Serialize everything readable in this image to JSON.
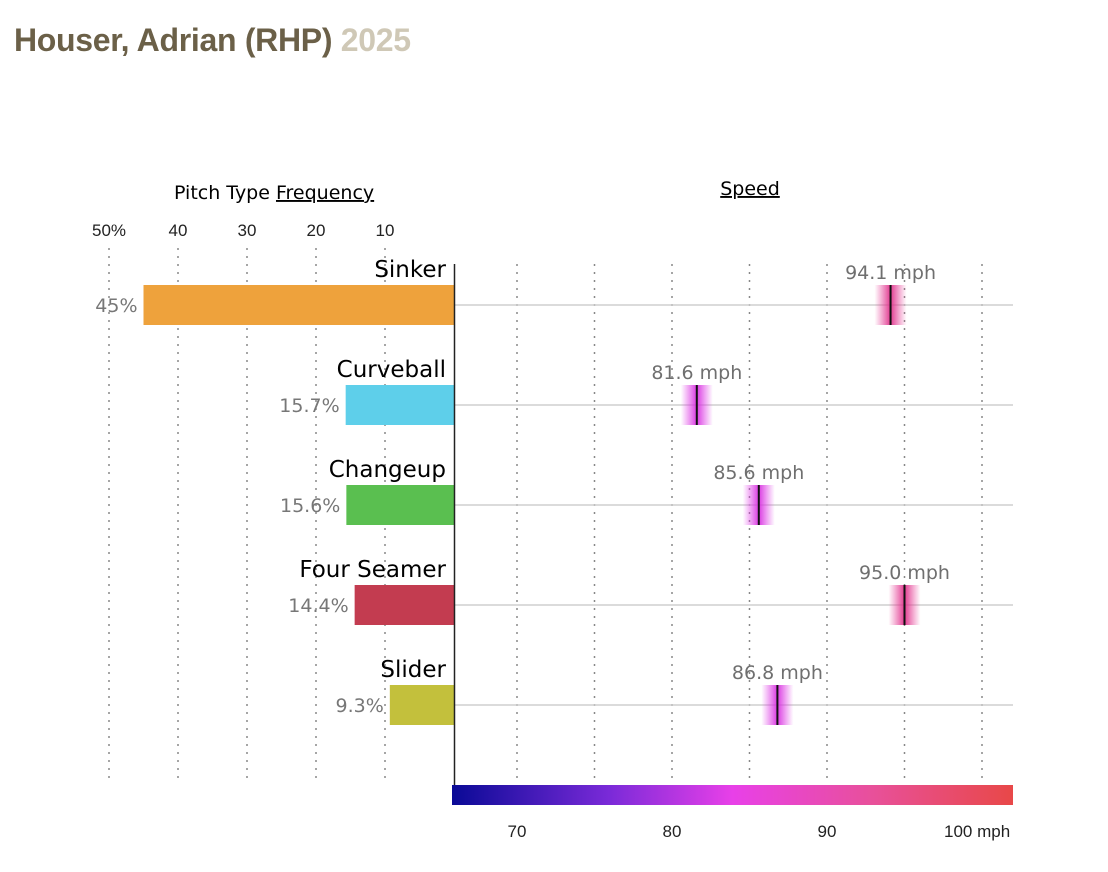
{
  "title": {
    "name": "Houser, Adrian (RHP)",
    "season": "2025"
  },
  "headers": {
    "frequency_prefix": "Pitch Type ",
    "frequency_link": "Frequency",
    "speed_link": "Speed"
  },
  "colors": {
    "title": "#6b6048",
    "season": "#cfc8b6",
    "gradient": [
      "#0a0a96",
      "#7a2ad8",
      "#e840e8",
      "#e8509a",
      "#e84848"
    ]
  },
  "chart_data": {
    "type": "bar",
    "title": "Pitch Type Frequency / Speed",
    "categories": [
      "Sinker",
      "Curveball",
      "Changeup",
      "Four Seamer",
      "Slider"
    ],
    "series": [
      {
        "name": "Frequency",
        "unit": "%",
        "values": [
          45,
          15.7,
          15.6,
          14.4,
          9.3
        ],
        "labels": [
          "45%",
          "15.7%",
          "15.6%",
          "14.4%",
          "9.3%"
        ],
        "colors": [
          "#eea23c",
          "#5ecfea",
          "#5abf50",
          "#c33c50",
          "#c3c03c"
        ]
      },
      {
        "name": "Speed",
        "unit": "mph",
        "values": [
          94.1,
          81.6,
          85.6,
          95.0,
          86.8
        ],
        "labels": [
          "94.1 mph",
          "81.6 mph",
          "85.6 mph",
          "95.0 mph",
          "86.8 mph"
        ]
      }
    ],
    "freq_axis": {
      "ticks": [
        50,
        40,
        30,
        20,
        10
      ],
      "tick_labels": [
        "50%",
        "40",
        "30",
        "20",
        "10"
      ],
      "range": [
        0,
        50
      ]
    },
    "speed_axis": {
      "ticks": [
        70,
        80,
        90,
        100
      ],
      "tick_labels": [
        "70",
        "80",
        "90",
        "100 mph"
      ],
      "grid": [
        70,
        75,
        80,
        85,
        90,
        95,
        100
      ],
      "range": [
        66,
        102
      ]
    }
  }
}
